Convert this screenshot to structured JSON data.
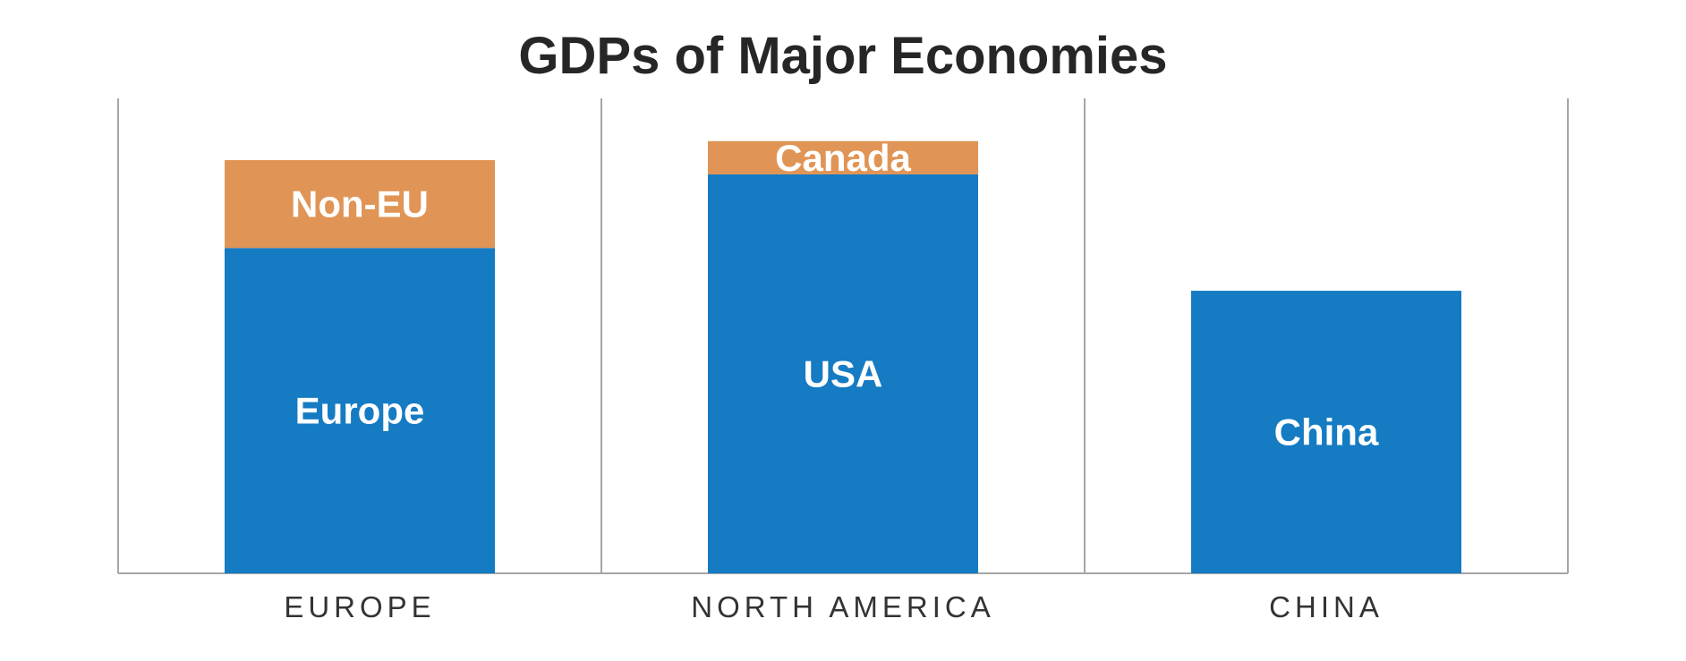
{
  "colors": {
    "primary": "#157bc3",
    "secondary": "#e09556",
    "axis": "#a6a6a6",
    "title": "#262626"
  },
  "chart_data": {
    "type": "bar",
    "stacked": true,
    "title": "GDPs of Major Economies",
    "xlabel": "",
    "ylabel": "",
    "grid": false,
    "legend": "none",
    "ylim": [
      0,
      100
    ],
    "categories": [
      "EUROPE",
      "NORTH AMERICA",
      "CHINA"
    ],
    "series": [
      {
        "color": "#157bc3",
        "values": [
          68.5,
          84,
          59.5
        ],
        "labels": [
          "Europe",
          "USA",
          "China"
        ]
      },
      {
        "color": "#e09556",
        "values": [
          18.5,
          7,
          0
        ],
        "labels": [
          "Non-EU",
          "Canada",
          ""
        ]
      }
    ]
  }
}
